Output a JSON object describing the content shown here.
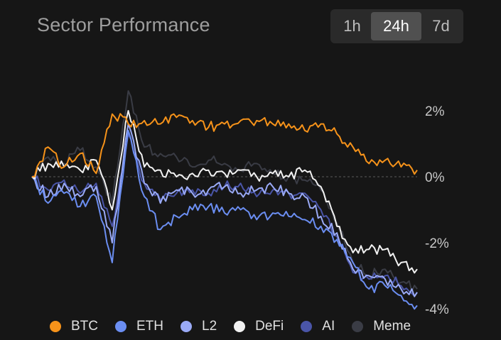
{
  "header": {
    "title": "Sector Performance",
    "timeframes": [
      "1h",
      "24h",
      "7d"
    ],
    "active_timeframe": "24h"
  },
  "chart_data": {
    "type": "line",
    "x": [
      0,
      1,
      2,
      3,
      4,
      5,
      6,
      7,
      8,
      9,
      10,
      11,
      12,
      13,
      14,
      15,
      16,
      17,
      18,
      19,
      20,
      21,
      22,
      23,
      24
    ],
    "xlabel": "",
    "ylabel": "",
    "ylim": [
      -4,
      2.5
    ],
    "yticks": [
      "2%",
      "0%",
      "-2%",
      "-4%"
    ],
    "ytick_values": [
      2,
      0,
      -2,
      -4
    ],
    "zero_line": true,
    "legend_position": "bottom",
    "series": [
      {
        "name": "BTC",
        "color": "#f7931a",
        "values": [
          0,
          0.9,
          0.3,
          0.7,
          0.1,
          1.9,
          1.6,
          1.7,
          1.6,
          1.8,
          1.7,
          1.5,
          1.6,
          1.7,
          1.7,
          1.6,
          1.6,
          1.4,
          1.6,
          1.3,
          0.9,
          0.4,
          0.5,
          0.3,
          0.2
        ]
      },
      {
        "name": "ETH",
        "color": "#6b8ef2",
        "values": [
          0,
          -0.8,
          -0.5,
          -0.9,
          -0.6,
          -2.6,
          1.4,
          -0.6,
          -1.6,
          -1.2,
          -1.0,
          -0.9,
          -1.1,
          -1.0,
          -1.3,
          -1.1,
          -1.2,
          -1.3,
          -1.5,
          -1.9,
          -2.6,
          -3.4,
          -3.3,
          -3.6,
          -3.9
        ]
      },
      {
        "name": "L2",
        "color": "#9aaaf6",
        "values": [
          0,
          -0.6,
          -0.2,
          -0.6,
          -0.3,
          -2.0,
          1.6,
          -0.2,
          -0.8,
          -0.4,
          -0.5,
          -0.4,
          -0.3,
          -0.5,
          -0.4,
          -0.3,
          -0.5,
          -0.6,
          -1.2,
          -1.7,
          -2.8,
          -3.0,
          -3.1,
          -3.4,
          -3.5
        ]
      },
      {
        "name": "DeFi",
        "color": "#f2f2f2",
        "values": [
          0,
          0.4,
          0.3,
          0.2,
          0.5,
          -1.0,
          2.0,
          0.3,
          0.2,
          0.0,
          0.1,
          0.2,
          0.1,
          0.2,
          0.0,
          0.1,
          0.0,
          0.2,
          -0.3,
          -1.5,
          -2.3,
          -2.2,
          -2.2,
          -2.6,
          -2.8
        ]
      },
      {
        "name": "AI",
        "color": "#4a55a8",
        "values": [
          0,
          -0.4,
          -0.1,
          -0.5,
          -0.2,
          -1.5,
          1.3,
          -0.2,
          -0.7,
          -0.5,
          -0.4,
          -0.5,
          -0.3,
          -0.2,
          -0.6,
          -0.4,
          -0.5,
          -0.5,
          -1.0,
          -1.8,
          -2.9,
          -3.1,
          -3.0,
          -3.3,
          -3.5
        ]
      },
      {
        "name": "Meme",
        "color": "#3a3c45",
        "values": [
          0,
          0.6,
          0.4,
          0.8,
          0.3,
          -0.8,
          2.6,
          0.9,
          0.7,
          0.6,
          0.3,
          0.5,
          0.4,
          0.2,
          0.4,
          0.1,
          0.0,
          -0.1,
          -0.4,
          -1.4,
          -2.6,
          -3.0,
          -2.8,
          -3.2,
          -3.4
        ]
      }
    ]
  }
}
